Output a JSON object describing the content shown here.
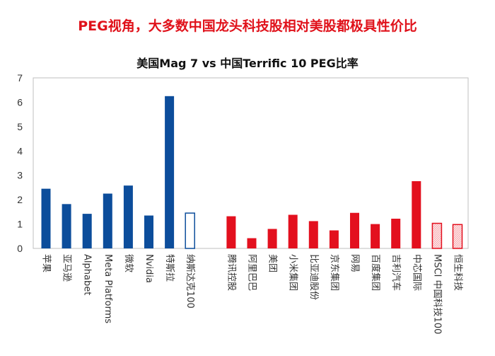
{
  "headline": "PEG视角，大多数中国龙头科技股相对美股都极具性价比",
  "colors": {
    "us": "#0c4d9b",
    "cn": "#e3101e",
    "headline": "#e0121b"
  },
  "chart_data": {
    "type": "bar",
    "title": "美国Mag 7 vs 中国Terrific 10 PEG比率",
    "xlabel": "",
    "ylabel": "",
    "ylim": [
      0,
      7
    ],
    "yticks": [
      0,
      1,
      2,
      3,
      4,
      5,
      6,
      7
    ],
    "grid": false,
    "groups": [
      {
        "name": "US",
        "bars": [
          {
            "label": "苹果",
            "value": 2.45,
            "style": "solid"
          },
          {
            "label": "亚马逊",
            "value": 1.82,
            "style": "solid"
          },
          {
            "label": "Alphabet",
            "value": 1.42,
            "style": "solid"
          },
          {
            "label": "Meta Platforms",
            "value": 2.25,
            "style": "solid"
          },
          {
            "label": "微软",
            "value": 2.58,
            "style": "solid"
          },
          {
            "label": "Nvidia",
            "value": 1.35,
            "style": "solid"
          },
          {
            "label": "特斯拉",
            "value": 6.25,
            "style": "solid"
          },
          {
            "label": "纳斯达克100",
            "value": 1.45,
            "style": "outline"
          }
        ]
      },
      {
        "name": "CN",
        "bars": [
          {
            "label": "腾讯控股",
            "value": 1.32,
            "style": "solid"
          },
          {
            "label": "阿里巴巴",
            "value": 0.42,
            "style": "solid"
          },
          {
            "label": "美团",
            "value": 0.8,
            "style": "solid"
          },
          {
            "label": "小米集团",
            "value": 1.38,
            "style": "solid"
          },
          {
            "label": "比亚迪股份",
            "value": 1.12,
            "style": "solid"
          },
          {
            "label": "京东集团",
            "value": 0.74,
            "style": "solid"
          },
          {
            "label": "网易",
            "value": 1.46,
            "style": "solid"
          },
          {
            "label": "百度集团",
            "value": 1.0,
            "style": "solid"
          },
          {
            "label": "吉利汽车",
            "value": 1.22,
            "style": "solid"
          },
          {
            "label": "中芯国际",
            "value": 2.76,
            "style": "solid"
          },
          {
            "label": "MSCI 中国科技100",
            "value": 1.03,
            "style": "hatched"
          },
          {
            "label": "恒生科技",
            "value": 0.98,
            "style": "hatched"
          }
        ]
      }
    ]
  }
}
